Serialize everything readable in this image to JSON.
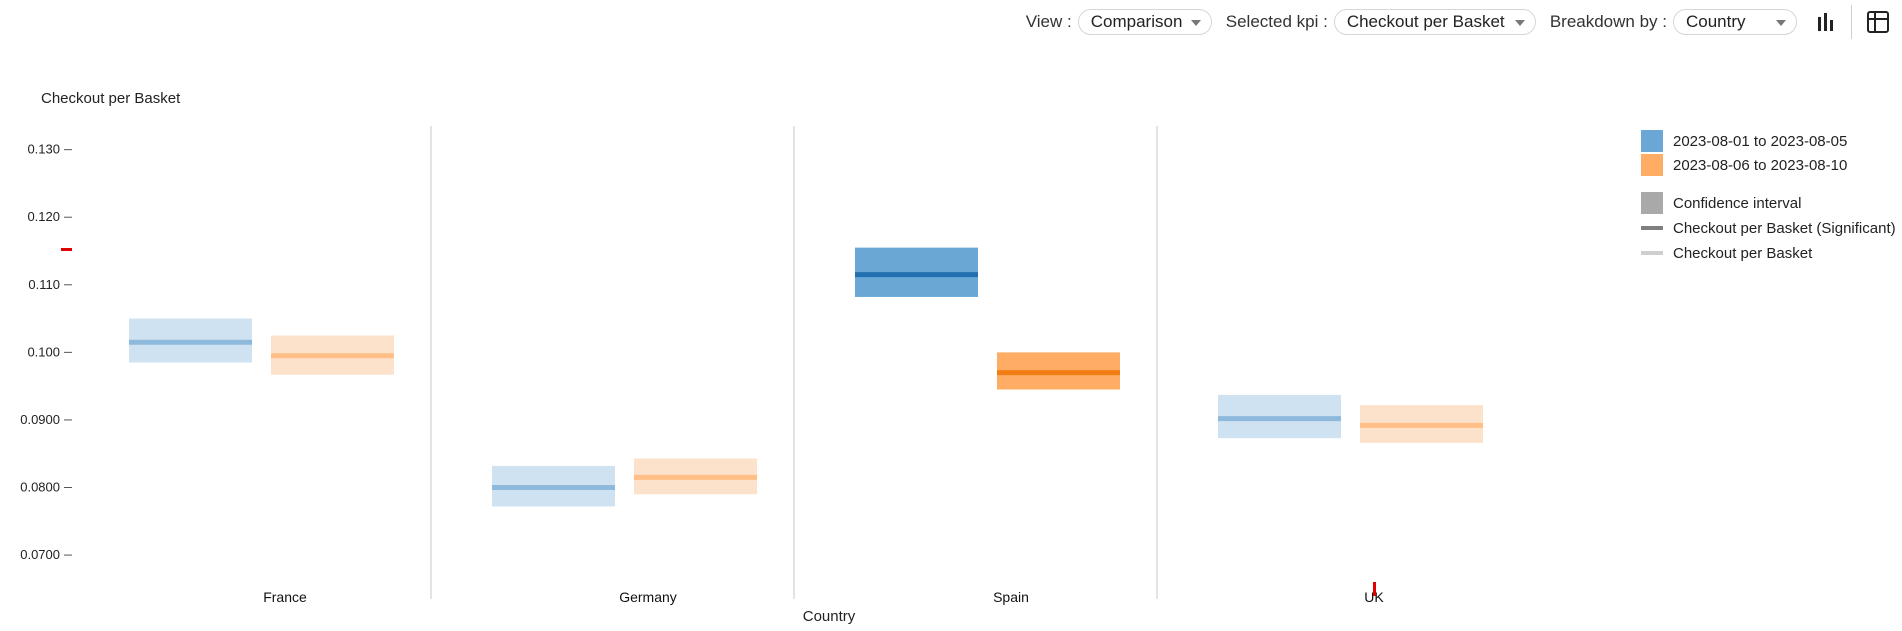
{
  "toolbar": {
    "view_label": "View :",
    "view_value": "Comparison",
    "kpi_label": "Selected kpi :",
    "kpi_value": "Checkout per Basket",
    "breakdown_label": "Breakdown by :",
    "breakdown_value": "Country",
    "chart_icon": "bar-chart-icon",
    "table_icon": "table-icon"
  },
  "colors": {
    "period1": "#3f8fc7",
    "period1_light": "#cfe2f1",
    "period1_line_light": "#8db9dc",
    "period1_dark": "#2270b0",
    "period1_fill_sig": "#6aa7d4",
    "period2": "#ff9c45",
    "period2_light": "#fde2cb",
    "period2_line_light": "#ffbf86",
    "period2_dark": "#f27d14",
    "period2_fill_sig": "#ffad65",
    "ci_legend": "#a9a9a9",
    "sig_legend": "#808080",
    "nonsig_legend": "#cfcfcf",
    "divider": "#c8c8c8",
    "marker": "#e00000"
  },
  "chart_data": {
    "type": "interval",
    "ylabel": "Checkout per Basket",
    "xlabel": "Country",
    "ylim": [
      0.0635,
      0.1335
    ],
    "yticks": [
      {
        "value": 0.13,
        "label": "0.130"
      },
      {
        "value": 0.12,
        "label": "0.120"
      },
      {
        "value": 0.11,
        "label": "0.110"
      },
      {
        "value": 0.1,
        "label": "0.100"
      },
      {
        "value": 0.09,
        "label": "0.0900"
      },
      {
        "value": 0.08,
        "label": "0.0800"
      },
      {
        "value": 0.07,
        "label": "0.0700"
      }
    ],
    "categories": [
      "France",
      "Germany",
      "Spain",
      "UK"
    ],
    "series": [
      {
        "name": "2023-08-01 to 2023-08-05",
        "values": [
          0.1015,
          0.08,
          0.1115,
          0.0902
        ],
        "ci_low": [
          0.0985,
          0.0772,
          0.1082,
          0.0873
        ],
        "ci_high": [
          0.105,
          0.0832,
          0.1155,
          0.0937
        ],
        "significant": [
          false,
          false,
          true,
          false
        ]
      },
      {
        "name": "2023-08-06 to 2023-08-10",
        "values": [
          0.0995,
          0.0815,
          0.097,
          0.0892
        ],
        "ci_low": [
          0.0967,
          0.079,
          0.0945,
          0.0866
        ],
        "ci_high": [
          0.1025,
          0.0843,
          0.1,
          0.0922
        ],
        "significant": [
          false,
          false,
          true,
          false
        ]
      }
    ],
    "legend": [
      {
        "label": "2023-08-01 to 2023-08-05",
        "kind": "swatch",
        "color": "#6aa7d4"
      },
      {
        "label": "2023-08-06 to 2023-08-10",
        "kind": "swatch",
        "color": "#ffad65"
      },
      {
        "label": "Confidence interval",
        "kind": "swatch",
        "color": "#a9a9a9"
      },
      {
        "label": "Checkout per Basket (Significant)",
        "kind": "line",
        "color": "#808080"
      },
      {
        "label": "Checkout per Basket",
        "kind": "line",
        "color": "#cfcfcf"
      }
    ],
    "legend_position": "top-right",
    "grid": false
  }
}
